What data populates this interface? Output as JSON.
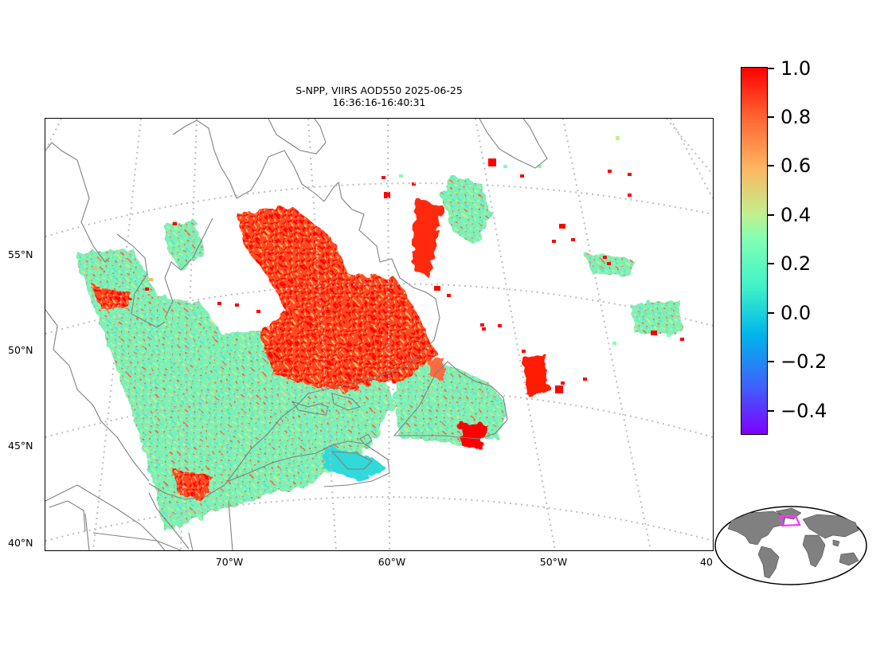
{
  "title": {
    "line1": "S-NPP, VIIRS AOD550 2025-06-25",
    "line2": "16:36:16-16:40:31"
  },
  "map": {
    "latitude_labels": [
      "55°N",
      "50°N",
      "45°N",
      "40°N"
    ],
    "longitude_labels": [
      "70°W",
      "60°W",
      "50°W",
      "40"
    ],
    "graticule_style": "dotted-gray",
    "coastline_color": "#808080"
  },
  "colorbar": {
    "min": -0.5,
    "max": 1.0,
    "colormap": "rainbow",
    "tick_labels": [
      "1.0",
      "0.8",
      "0.6",
      "0.4",
      "0.2",
      "0.0",
      "−0.2",
      "−0.4"
    ]
  },
  "inset": {
    "name": "world-locator",
    "land_color": "#808080",
    "highlight_color": "#ff33ff"
  },
  "colors": {
    "high_aod": "#ff0000",
    "mid_aod": "#ffb360",
    "low_aod": "#80ffb4",
    "zero_aod": "#3ff1c8"
  }
}
